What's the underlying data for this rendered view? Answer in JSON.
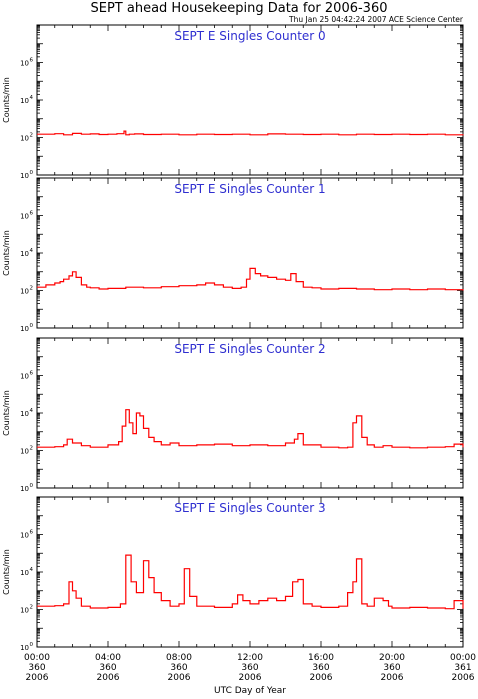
{
  "chart_data": {
    "type": "line",
    "title": "SEPT ahead Housekeeping Data for 2006-360",
    "timestamp": "Thu Jan 25 04:42:24 2007 ACE Science Center",
    "xlabel": "UTC Day of Year",
    "ylabel": "Counts/min",
    "y_scale": "log",
    "ylim": [
      1,
      100000000
    ],
    "y_tick_base": "10",
    "y_tick_exponents": [
      "0",
      "2",
      "4",
      "6"
    ],
    "xlim_hours": [
      0,
      24
    ],
    "x_ticks": [
      {
        "hour": 0,
        "time": "00:00",
        "doy": "360",
        "year": "2006"
      },
      {
        "hour": 4,
        "time": "04:00",
        "doy": "360",
        "year": "2006"
      },
      {
        "hour": 8,
        "time": "08:00",
        "doy": "360",
        "year": "2006"
      },
      {
        "hour": 12,
        "time": "12:00",
        "doy": "360",
        "year": "2006"
      },
      {
        "hour": 16,
        "time": "16:00",
        "doy": "360",
        "year": "2006"
      },
      {
        "hour": 20,
        "time": "20:00",
        "doy": "360",
        "year": "2006"
      },
      {
        "hour": 24,
        "time": "00:00",
        "doy": "361",
        "year": "2006"
      }
    ],
    "line_color": "#ff0000",
    "label_color": "#2f2fd0",
    "panels": [
      {
        "label": "SEPT E Singles Counter 0",
        "series": {
          "x": [
            0,
            1,
            1.5,
            2,
            2.5,
            3,
            3.5,
            4,
            4.5,
            4.9,
            5,
            5.2,
            5.5,
            6,
            7,
            8,
            9,
            10,
            11,
            12,
            13,
            14,
            15,
            16,
            17,
            18,
            19,
            20,
            21,
            22,
            23,
            24
          ],
          "y": [
            150,
            160,
            140,
            165,
            150,
            155,
            145,
            150,
            160,
            220,
            140,
            150,
            155,
            145,
            150,
            140,
            150,
            145,
            150,
            140,
            155,
            150,
            145,
            150,
            140,
            150,
            145,
            150,
            145,
            150,
            140,
            150
          ]
        }
      },
      {
        "label": "SEPT E Singles Counter 1",
        "series": {
          "x": [
            0,
            0.5,
            1,
            1.3,
            1.5,
            1.8,
            2,
            2.2,
            2.5,
            2.8,
            3,
            3.5,
            4,
            5,
            6,
            7,
            8,
            9,
            9.5,
            10,
            10.5,
            11,
            11.5,
            11.8,
            12,
            12.3,
            12.6,
            13,
            13.5,
            14,
            14.3,
            14.6,
            15,
            15.5,
            16,
            17,
            18,
            19,
            20,
            21,
            22,
            23,
            24
          ],
          "y": [
            150,
            200,
            250,
            300,
            400,
            600,
            1000,
            500,
            200,
            150,
            140,
            120,
            130,
            150,
            140,
            160,
            180,
            200,
            250,
            200,
            150,
            130,
            150,
            400,
            1500,
            800,
            600,
            500,
            400,
            350,
            800,
            300,
            150,
            140,
            120,
            130,
            120,
            110,
            120,
            110,
            120,
            110,
            100
          ]
        }
      },
      {
        "label": "SEPT E Singles Counter 2",
        "series": {
          "x": [
            0,
            1,
            1.5,
            1.7,
            2,
            2.5,
            3,
            4,
            4.6,
            4.8,
            5,
            5.2,
            5.4,
            5.6,
            5.8,
            6,
            6.3,
            6.6,
            7,
            7.5,
            8,
            9,
            10,
            11,
            12,
            13,
            14,
            14.5,
            14.7,
            15,
            16,
            17,
            17.5,
            17.8,
            18,
            18.3,
            18.6,
            19,
            19.5,
            20,
            21,
            22,
            23,
            23.5,
            24
          ],
          "y": [
            150,
            160,
            200,
            400,
            250,
            180,
            150,
            200,
            300,
            2000,
            15000,
            3000,
            800,
            10000,
            7000,
            1500,
            500,
            300,
            200,
            250,
            180,
            200,
            220,
            180,
            200,
            180,
            250,
            400,
            800,
            200,
            150,
            140,
            150,
            3000,
            7000,
            500,
            200,
            150,
            180,
            150,
            140,
            150,
            160,
            220,
            150
          ]
        }
      },
      {
        "label": "SEPT E Singles Counter 3",
        "series": {
          "x": [
            0,
            1,
            1.5,
            1.8,
            2,
            2.2,
            2.5,
            3,
            4,
            4.7,
            5,
            5.3,
            5.6,
            6,
            6.3,
            6.6,
            7,
            7.5,
            8,
            8.3,
            8.6,
            9,
            10,
            11,
            11.3,
            11.6,
            12,
            12.5,
            13,
            13.5,
            14,
            14.4,
            14.7,
            15,
            15.5,
            16,
            17,
            17.5,
            17.8,
            18,
            18.3,
            18.6,
            19,
            19.5,
            19.8,
            20,
            21,
            22,
            23,
            23.5,
            24
          ],
          "y": [
            150,
            160,
            200,
            3000,
            1000,
            400,
            150,
            120,
            130,
            200,
            80000,
            3000,
            800,
            40000,
            5000,
            800,
            300,
            150,
            200,
            15000,
            500,
            150,
            130,
            200,
            600,
            300,
            200,
            300,
            400,
            300,
            500,
            3000,
            4000,
            200,
            150,
            130,
            150,
            800,
            3000,
            50000,
            200,
            150,
            400,
            300,
            150,
            120,
            130,
            120,
            110,
            300,
            110
          ]
        }
      }
    ]
  }
}
